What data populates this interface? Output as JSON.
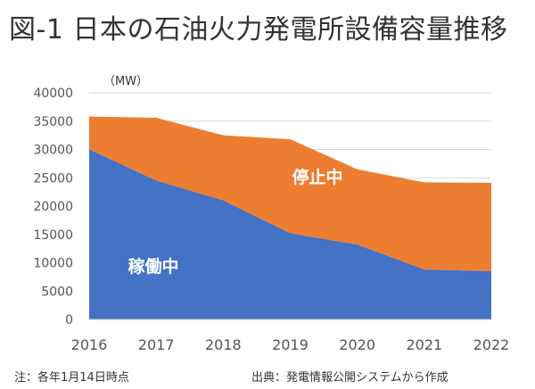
{
  "title": "図-1 日本の石油火力発電所設備容量推移",
  "unit_label": "（MW）",
  "notes": {
    "left": "注：各年1月14日時点",
    "right": "出典：発電情報公開システムから作成"
  },
  "colors": {
    "operating": "#4472C4",
    "stopped": "#ED7D31",
    "label": "#ffffff",
    "axis_text": "#555555",
    "grid": "#d9d9d9"
  },
  "chart_data": {
    "type": "area",
    "stacked": true,
    "title": "図-1 日本の石油火力発電所設備容量推移",
    "xlabel": "",
    "ylabel": "（MW）",
    "x": [
      "2016",
      "2017",
      "2018",
      "2019",
      "2020",
      "2021",
      "2022"
    ],
    "ylim": [
      0,
      40000
    ],
    "yticks": [
      0,
      5000,
      10000,
      15000,
      20000,
      25000,
      30000,
      35000,
      40000
    ],
    "grid": true,
    "series": [
      {
        "name": "稼働中",
        "values": [
          30000,
          24500,
          21000,
          15200,
          13200,
          8800,
          8500
        ]
      },
      {
        "name": "停止中",
        "values": [
          5800,
          11100,
          11500,
          16600,
          13300,
          15400,
          15600
        ]
      }
    ],
    "annotations": [
      {
        "text": "稼働中",
        "series": "稼働中"
      },
      {
        "text": "停止中",
        "series": "停止中"
      }
    ]
  }
}
